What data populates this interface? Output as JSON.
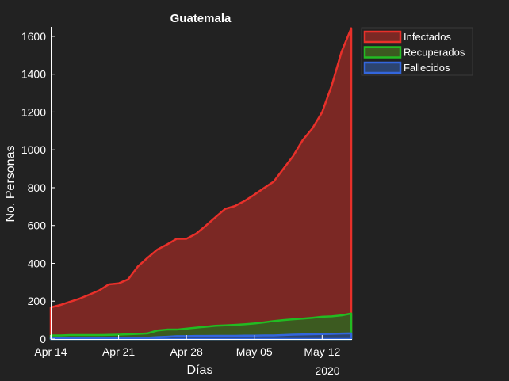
{
  "chart_data": {
    "type": "area",
    "title": "Guatemala",
    "xlabel": "Días",
    "ylabel": "No. Personas",
    "x_year_label": "2020",
    "x_ticks": [
      "Apr 14",
      "Apr 21",
      "Apr 28",
      "May 05",
      "May 12"
    ],
    "x_tick_days": [
      0,
      7,
      14,
      21,
      28
    ],
    "y_ticks": [
      0,
      200,
      400,
      600,
      800,
      1000,
      1200,
      1400,
      1600
    ],
    "ylim": [
      0,
      1650
    ],
    "xlim": [
      "2020-04-14",
      "2020-05-15"
    ],
    "dates": [
      "2020-04-14",
      "2020-04-15",
      "2020-04-16",
      "2020-04-17",
      "2020-04-18",
      "2020-04-19",
      "2020-04-20",
      "2020-04-21",
      "2020-04-22",
      "2020-04-23",
      "2020-04-24",
      "2020-04-25",
      "2020-04-26",
      "2020-04-27",
      "2020-04-28",
      "2020-04-29",
      "2020-04-30",
      "2020-05-01",
      "2020-05-02",
      "2020-05-03",
      "2020-05-04",
      "2020-05-05",
      "2020-05-06",
      "2020-05-07",
      "2020-05-08",
      "2020-05-09",
      "2020-05-10",
      "2020-05-11",
      "2020-05-12",
      "2020-05-13",
      "2020-05-14",
      "2020-05-15"
    ],
    "grid": false,
    "legend_position": "outside-top-right",
    "series": [
      {
        "name": "Infectados",
        "color": "#e8302a",
        "fill": "#7b2824",
        "values": [
          167,
          180,
          197,
          214,
          235,
          257,
          289,
          294,
          316,
          384,
          430,
          473,
          500,
          530,
          530,
          557,
          599,
          644,
          688,
          703,
          730,
          763,
          798,
          832,
          900,
          967,
          1052,
          1114,
          1199,
          1342,
          1518,
          1643
        ]
      },
      {
        "name": "Recuperados",
        "color": "#22bb22",
        "fill": "#3c5a20",
        "values": [
          19,
          19,
          21,
          21,
          21,
          21,
          22,
          23,
          25,
          27,
          30,
          45,
          50,
          50,
          55,
          60,
          65,
          70,
          72,
          75,
          78,
          82,
          88,
          95,
          100,
          104,
          108,
          112,
          118,
          120,
          125,
          135
        ]
      },
      {
        "name": "Fallecidos",
        "color": "#3366dd",
        "fill": "#2c4470",
        "values": [
          5,
          5,
          5,
          7,
          7,
          7,
          7,
          7,
          7,
          7,
          7,
          10,
          12,
          15,
          15,
          16,
          16,
          17,
          17,
          17,
          18,
          18,
          19,
          19,
          21,
          23,
          24,
          25,
          26,
          27,
          29,
          30
        ]
      }
    ]
  }
}
